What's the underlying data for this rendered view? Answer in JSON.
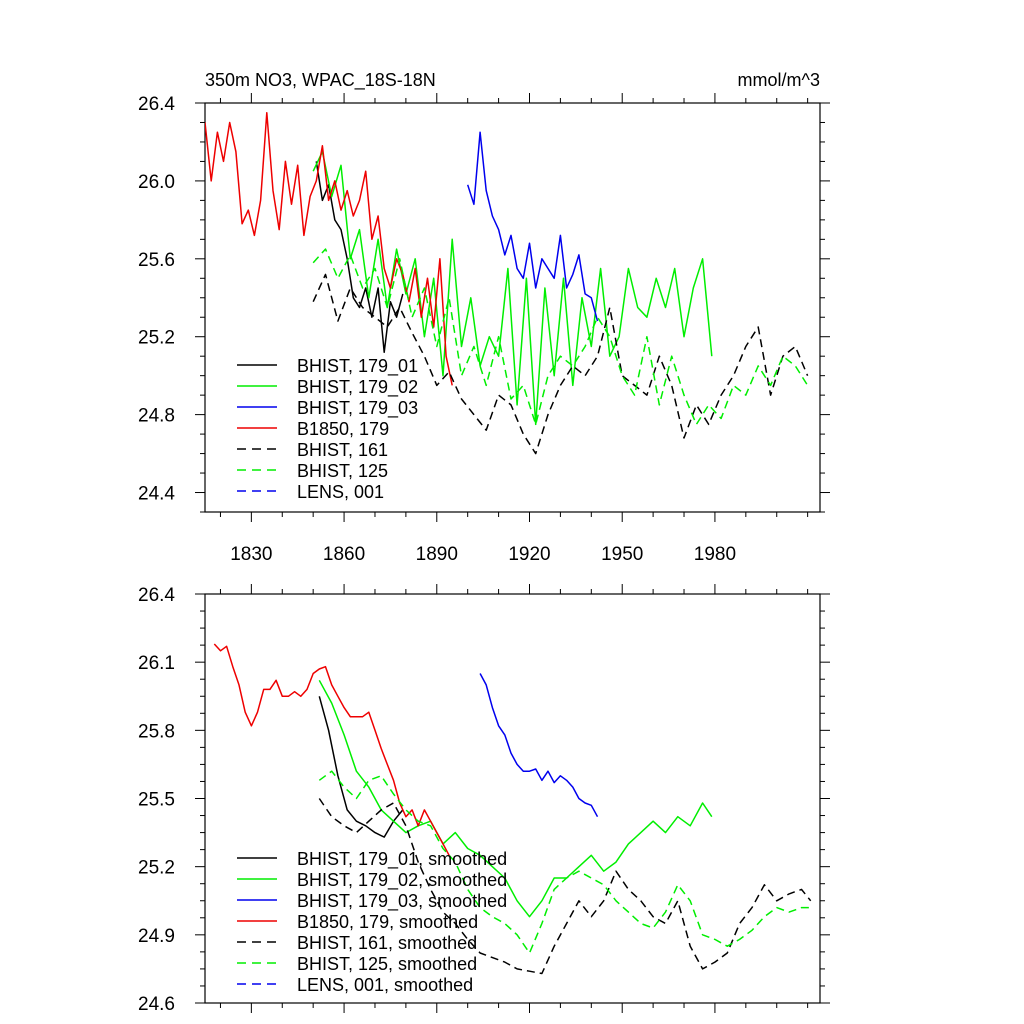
{
  "chart_data": [
    {
      "type": "line",
      "title": "350m NO3, WPAC_18S-18N",
      "units": "mmol/m^3",
      "xlim": [
        1815,
        2014
      ],
      "ylim": [
        24.3,
        26.4
      ],
      "xticks": [
        1830,
        1860,
        1890,
        1920,
        1950,
        1980
      ],
      "xtick_labels": [
        "1830",
        "1860",
        "1890",
        "1920",
        "1950",
        "1980"
      ],
      "yticks": [
        24.4,
        24.8,
        25.2,
        25.6,
        26.0,
        26.4
      ],
      "ytick_labels": [
        "24.4",
        "24.8",
        "25.2",
        "25.6",
        "26.0",
        "26.4"
      ],
      "legend": "bottom-left",
      "series": [
        {
          "name": "BHIST, 179_01",
          "color": "#000000",
          "dash": false,
          "x": [
            1851,
            1853,
            1855,
            1857,
            1859,
            1861,
            1863,
            1865,
            1867,
            1869,
            1871,
            1873,
            1875,
            1877,
            1879
          ],
          "y": [
            26.1,
            25.9,
            25.98,
            25.8,
            25.75,
            25.6,
            25.4,
            25.35,
            25.45,
            25.3,
            25.45,
            25.12,
            25.38,
            25.3,
            25.42
          ]
        },
        {
          "name": "BHIST, 179_02",
          "color": "#00ee00",
          "dash": false,
          "x": [
            1850,
            1853,
            1856,
            1859,
            1862,
            1865,
            1868,
            1871,
            1874,
            1877,
            1880,
            1883,
            1886,
            1889,
            1892,
            1895,
            1898,
            1901,
            1904,
            1907,
            1910,
            1913,
            1916,
            1919,
            1922,
            1925,
            1928,
            1931,
            1934,
            1937,
            1940,
            1943,
            1946,
            1949,
            1952,
            1955,
            1958,
            1961,
            1964,
            1967,
            1970,
            1973,
            1976,
            1979
          ],
          "y": [
            26.05,
            26.15,
            25.92,
            26.08,
            25.6,
            25.75,
            25.4,
            25.7,
            25.35,
            25.65,
            25.42,
            25.6,
            25.2,
            25.5,
            25.0,
            25.7,
            25.15,
            25.4,
            25.05,
            25.2,
            25.1,
            25.55,
            24.85,
            25.5,
            24.75,
            25.45,
            25.0,
            25.5,
            24.95,
            25.4,
            25.15,
            25.55,
            25.1,
            25.2,
            25.55,
            25.35,
            25.3,
            25.5,
            25.35,
            25.55,
            25.2,
            25.45,
            25.6,
            25.1
          ]
        },
        {
          "name": "BHIST, 179_03",
          "color": "#0000ee",
          "dash": false,
          "x": [
            1900,
            1902,
            1904,
            1906,
            1908,
            1910,
            1912,
            1914,
            1916,
            1918,
            1920,
            1922,
            1924,
            1926,
            1928,
            1930,
            1932,
            1934,
            1936,
            1938,
            1940,
            1942
          ],
          "y": [
            25.98,
            25.88,
            26.25,
            25.95,
            25.82,
            25.75,
            25.62,
            25.72,
            25.55,
            25.5,
            25.68,
            25.45,
            25.6,
            25.55,
            25.5,
            25.72,
            25.45,
            25.52,
            25.62,
            25.42,
            25.4,
            25.28
          ]
        },
        {
          "name": "B1850, 179",
          "color": "#ee0000",
          "dash": false,
          "x": [
            1815,
            1817,
            1819,
            1821,
            1823,
            1825,
            1827,
            1829,
            1831,
            1833,
            1835,
            1837,
            1839,
            1841,
            1843,
            1845,
            1847,
            1849,
            1851,
            1853,
            1855,
            1857,
            1859,
            1861,
            1863,
            1865,
            1867,
            1869,
            1871,
            1873,
            1875,
            1877,
            1879,
            1881,
            1883,
            1885,
            1887,
            1889,
            1891,
            1893,
            1895
          ],
          "y": [
            26.3,
            26.0,
            26.25,
            26.1,
            26.3,
            26.15,
            25.78,
            25.85,
            25.72,
            25.9,
            26.35,
            25.95,
            25.75,
            26.1,
            25.88,
            26.08,
            25.72,
            25.92,
            26.0,
            26.18,
            25.9,
            26.0,
            25.85,
            25.95,
            25.82,
            25.9,
            26.05,
            25.7,
            25.82,
            25.55,
            25.45,
            25.6,
            25.52,
            25.38,
            25.55,
            25.3,
            25.5,
            25.25,
            25.6,
            25.1,
            24.95
          ]
        },
        {
          "name": "BHIST, 161",
          "color": "#000000",
          "dash": true,
          "x": [
            1850,
            1854,
            1858,
            1862,
            1866,
            1870,
            1874,
            1878,
            1882,
            1886,
            1890,
            1894,
            1898,
            1902,
            1906,
            1910,
            1914,
            1918,
            1922,
            1926,
            1930,
            1934,
            1938,
            1942,
            1946,
            1950,
            1954,
            1958,
            1962,
            1966,
            1970,
            1974,
            1978,
            1982,
            1986,
            1990,
            1994,
            1998,
            2002,
            2006,
            2010
          ],
          "y": [
            25.38,
            25.52,
            25.28,
            25.45,
            25.35,
            25.3,
            25.25,
            25.35,
            25.22,
            25.1,
            24.95,
            25.02,
            24.88,
            24.8,
            24.72,
            24.9,
            24.85,
            24.7,
            24.6,
            24.8,
            24.95,
            25.05,
            25.0,
            25.1,
            25.35,
            25.0,
            24.95,
            24.9,
            25.1,
            24.95,
            24.68,
            24.85,
            24.75,
            24.9,
            25.0,
            25.15,
            25.25,
            24.9,
            25.1,
            25.15,
            25.0
          ]
        },
        {
          "name": "BHIST, 125",
          "color": "#00ee00",
          "dash": true,
          "x": [
            1850,
            1854,
            1858,
            1862,
            1866,
            1870,
            1874,
            1878,
            1882,
            1886,
            1890,
            1894,
            1898,
            1902,
            1906,
            1910,
            1914,
            1918,
            1922,
            1926,
            1930,
            1934,
            1938,
            1942,
            1946,
            1950,
            1954,
            1958,
            1962,
            1966,
            1970,
            1974,
            1978,
            1982,
            1986,
            1990,
            1994,
            1998,
            2002,
            2006,
            2010
          ],
          "y": [
            25.58,
            25.65,
            25.5,
            25.62,
            25.45,
            25.55,
            25.35,
            25.6,
            25.3,
            25.45,
            25.15,
            25.4,
            25.0,
            25.15,
            24.95,
            25.2,
            24.88,
            24.95,
            24.75,
            25.0,
            25.1,
            25.05,
            25.15,
            25.3,
            25.2,
            25.0,
            24.9,
            25.2,
            24.85,
            25.1,
            24.9,
            24.75,
            24.85,
            24.78,
            24.95,
            24.9,
            25.05,
            24.95,
            25.1,
            25.05,
            24.95
          ]
        },
        {
          "name": "LENS, 001",
          "color": "#0000ee",
          "dash": true,
          "x": [],
          "y": []
        }
      ]
    },
    {
      "type": "line",
      "xlim": [
        1815,
        2014
      ],
      "ylim": [
        24.6,
        26.4
      ],
      "xticks": [
        1830,
        1860,
        1890,
        1920,
        1950,
        1980
      ],
      "yticks": [
        24.6,
        24.9,
        25.2,
        25.5,
        25.8,
        26.1,
        26.4
      ],
      "ytick_labels": [
        "24.6",
        "24.9",
        "25.2",
        "25.5",
        "25.8",
        "26.1",
        "26.4"
      ],
      "legend": "bottom-left",
      "series": [
        {
          "name": "BHIST, 179_01, smoothed",
          "color": "#000000",
          "dash": false,
          "x": [
            1852,
            1855,
            1858,
            1861,
            1864,
            1867,
            1870,
            1873,
            1876,
            1879
          ],
          "y": [
            25.95,
            25.8,
            25.6,
            25.45,
            25.4,
            25.38,
            25.35,
            25.33,
            25.4,
            25.45
          ]
        },
        {
          "name": "BHIST, 179_02, smoothed",
          "color": "#00ee00",
          "dash": false,
          "x": [
            1852,
            1856,
            1860,
            1864,
            1868,
            1872,
            1876,
            1880,
            1884,
            1888,
            1892,
            1896,
            1900,
            1904,
            1908,
            1912,
            1916,
            1920,
            1924,
            1928,
            1932,
            1936,
            1940,
            1944,
            1948,
            1952,
            1956,
            1960,
            1964,
            1968,
            1972,
            1976,
            1979
          ],
          "y": [
            26.02,
            25.92,
            25.78,
            25.62,
            25.55,
            25.45,
            25.4,
            25.35,
            25.38,
            25.4,
            25.3,
            25.35,
            25.28,
            25.25,
            25.2,
            25.15,
            25.05,
            24.98,
            25.05,
            25.15,
            25.15,
            25.2,
            25.25,
            25.18,
            25.22,
            25.3,
            25.35,
            25.4,
            25.35,
            25.42,
            25.38,
            25.48,
            25.42
          ]
        },
        {
          "name": "BHIST, 179_03, smoothed",
          "color": "#0000ee",
          "dash": false,
          "x": [
            1904,
            1906,
            1908,
            1910,
            1912,
            1914,
            1916,
            1918,
            1920,
            1922,
            1924,
            1926,
            1928,
            1930,
            1932,
            1934,
            1936,
            1938,
            1940,
            1942
          ],
          "y": [
            26.05,
            26.0,
            25.9,
            25.82,
            25.78,
            25.7,
            25.65,
            25.62,
            25.62,
            25.63,
            25.58,
            25.62,
            25.57,
            25.6,
            25.58,
            25.55,
            25.5,
            25.48,
            25.47,
            25.42
          ]
        },
        {
          "name": "B1850, 179, smoothed",
          "color": "#ee0000",
          "dash": false,
          "x": [
            1818,
            1820,
            1822,
            1824,
            1826,
            1828,
            1830,
            1832,
            1834,
            1836,
            1838,
            1840,
            1842,
            1844,
            1846,
            1848,
            1850,
            1852,
            1854,
            1856,
            1858,
            1860,
            1862,
            1864,
            1866,
            1868,
            1870,
            1872,
            1874,
            1876,
            1878,
            1880,
            1882,
            1884,
            1886,
            1888,
            1890,
            1892,
            1894
          ],
          "y": [
            26.18,
            26.15,
            26.17,
            26.08,
            26.0,
            25.88,
            25.82,
            25.88,
            25.98,
            25.98,
            26.02,
            25.95,
            25.95,
            25.97,
            25.95,
            25.98,
            26.05,
            26.07,
            26.08,
            26.0,
            25.95,
            25.9,
            25.86,
            25.86,
            25.86,
            25.88,
            25.8,
            25.72,
            25.65,
            25.58,
            25.48,
            25.42,
            25.45,
            25.38,
            25.45,
            25.4,
            25.35,
            25.3,
            25.25
          ]
        },
        {
          "name": "BHIST, 161, smoothed",
          "color": "#000000",
          "dash": true,
          "x": [
            1852,
            1856,
            1860,
            1864,
            1868,
            1872,
            1876,
            1880,
            1884,
            1888,
            1892,
            1896,
            1900,
            1904,
            1908,
            1912,
            1916,
            1920,
            1924,
            1928,
            1932,
            1936,
            1940,
            1944,
            1948,
            1952,
            1956,
            1960,
            1964,
            1968,
            1972,
            1976,
            1980,
            1984,
            1988,
            1992,
            1996,
            2000,
            2004,
            2008,
            2011
          ],
          "y": [
            25.5,
            25.42,
            25.38,
            25.35,
            25.4,
            25.45,
            25.48,
            25.38,
            25.22,
            25.1,
            25.0,
            24.95,
            24.88,
            24.82,
            24.8,
            24.78,
            24.75,
            24.74,
            24.73,
            24.85,
            24.95,
            25.05,
            24.98,
            25.05,
            25.18,
            25.1,
            25.05,
            24.98,
            24.95,
            25.05,
            24.85,
            24.75,
            24.78,
            24.82,
            24.95,
            25.02,
            25.12,
            25.05,
            25.08,
            25.1,
            25.05
          ]
        },
        {
          "name": "BHIST, 125, smoothed",
          "color": "#00ee00",
          "dash": true,
          "x": [
            1852,
            1856,
            1860,
            1864,
            1868,
            1872,
            1876,
            1880,
            1884,
            1888,
            1892,
            1896,
            1900,
            1904,
            1908,
            1912,
            1916,
            1920,
            1924,
            1928,
            1932,
            1936,
            1940,
            1944,
            1948,
            1952,
            1956,
            1960,
            1964,
            1968,
            1972,
            1976,
            1980,
            1984,
            1988,
            1992,
            1996,
            2000,
            2004,
            2008,
            2011
          ],
          "y": [
            25.58,
            25.62,
            25.55,
            25.5,
            25.58,
            25.6,
            25.52,
            25.45,
            25.4,
            25.38,
            25.28,
            25.22,
            25.1,
            25.02,
            24.98,
            24.95,
            24.9,
            24.82,
            24.95,
            25.1,
            25.15,
            25.18,
            25.15,
            25.12,
            25.05,
            25.0,
            24.95,
            24.93,
            25.0,
            25.12,
            25.05,
            24.9,
            24.88,
            24.85,
            24.88,
            24.92,
            24.98,
            25.02,
            25.0,
            25.02,
            25.02
          ]
        },
        {
          "name": "LENS, 001, smoothed",
          "color": "#0000ee",
          "dash": true,
          "x": [],
          "y": []
        }
      ]
    }
  ]
}
